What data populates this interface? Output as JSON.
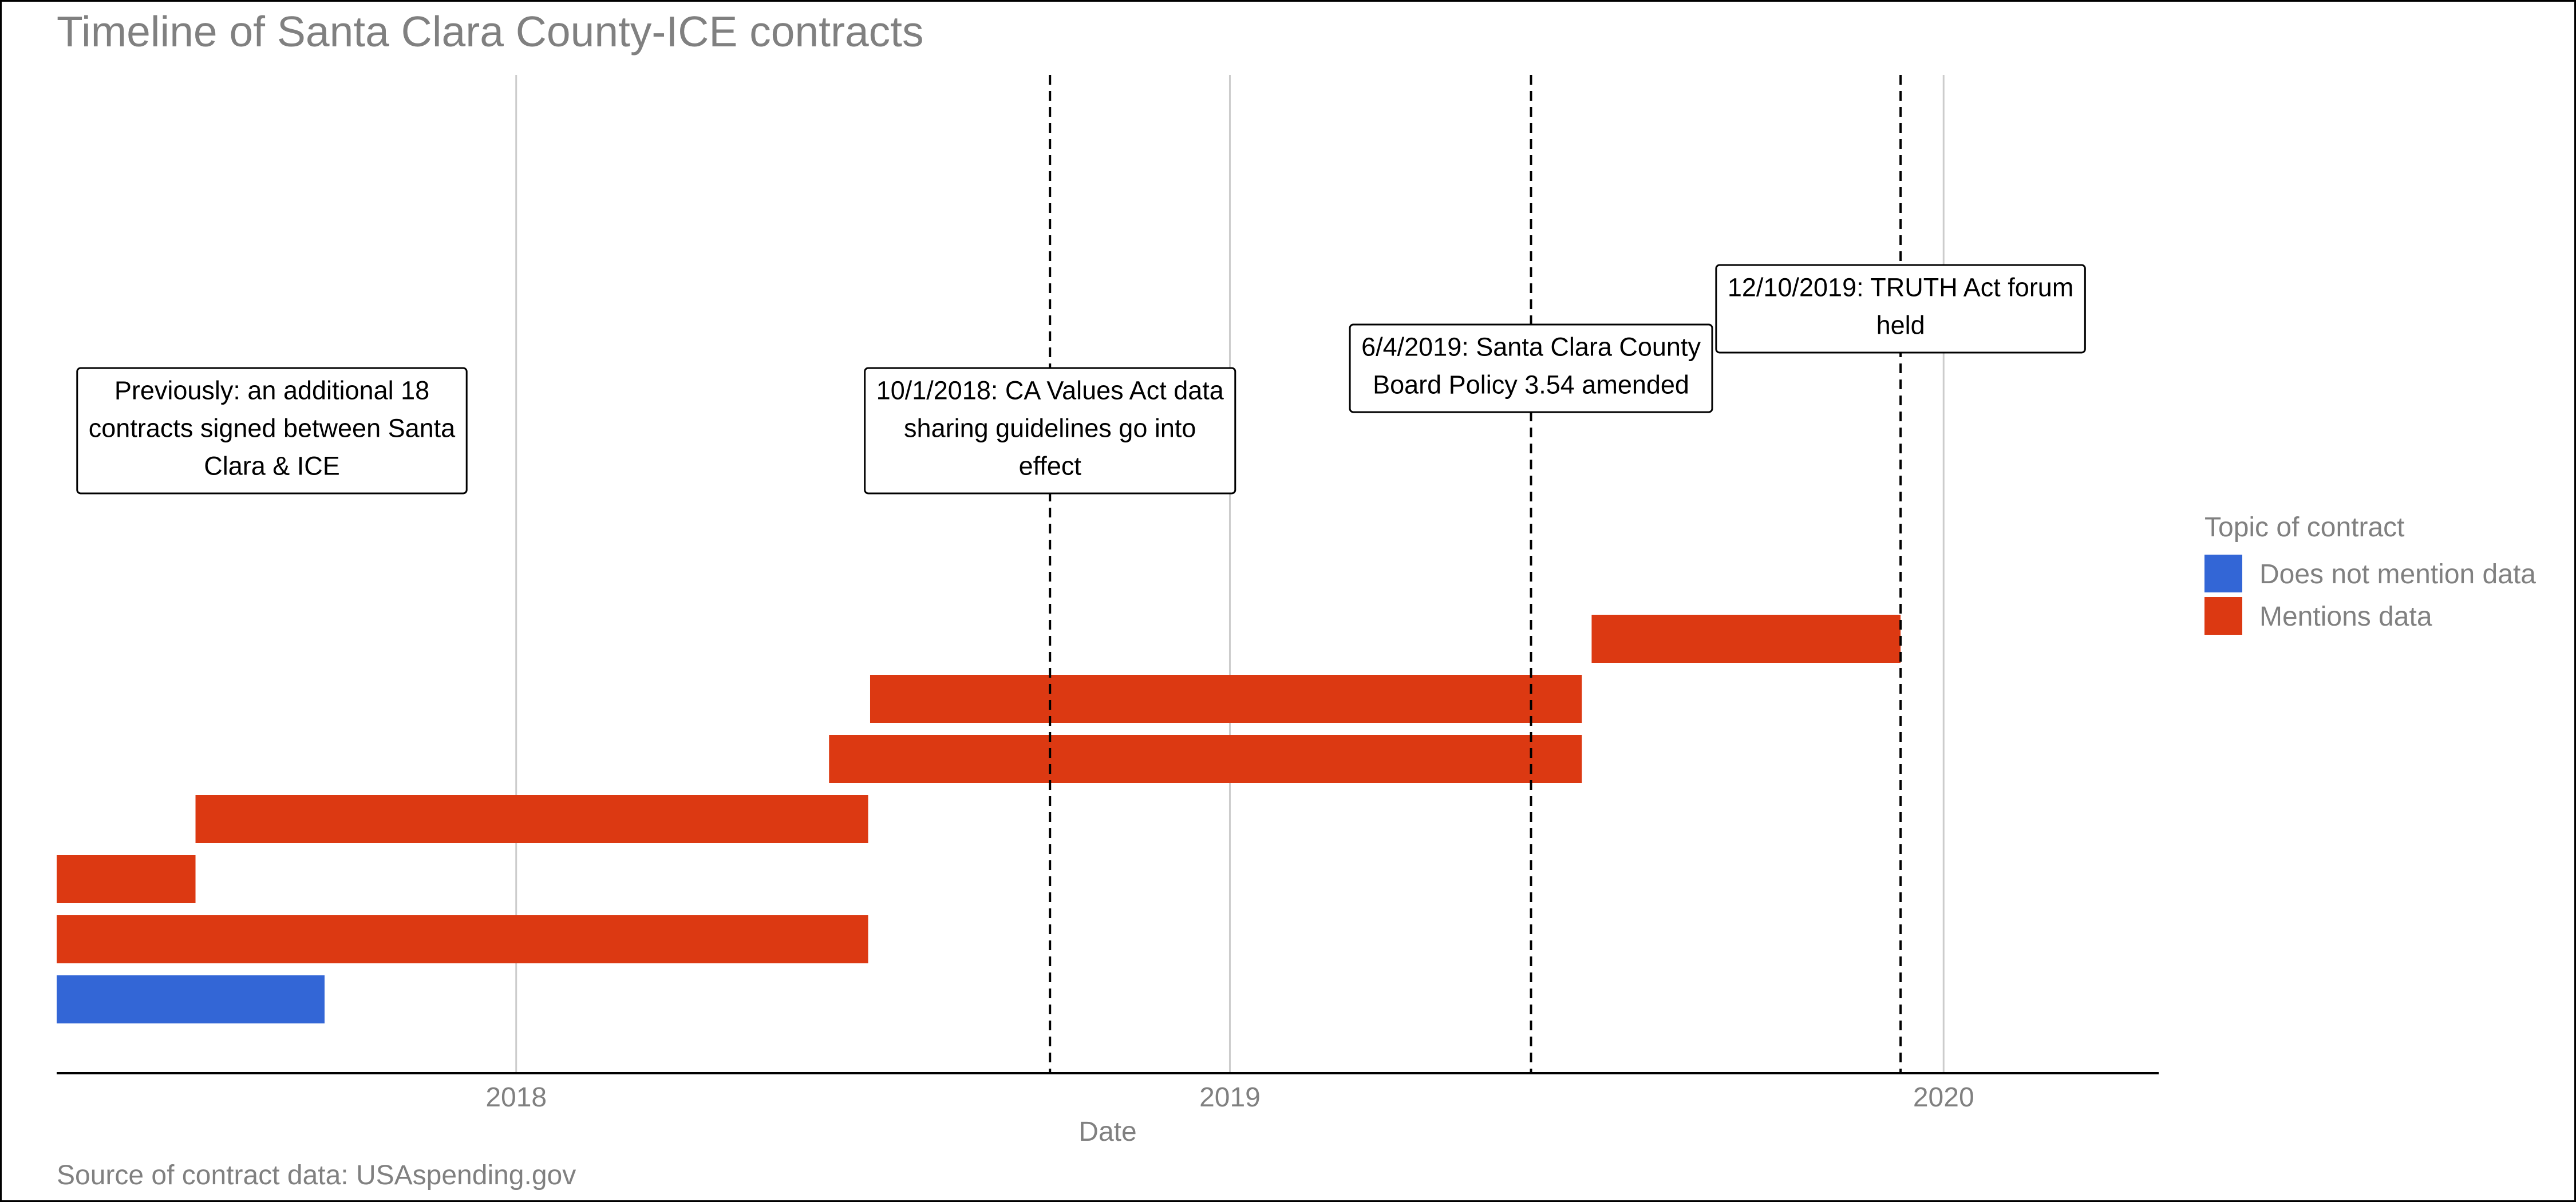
{
  "chart_data": {
    "type": "bar",
    "subtype": "timeline",
    "title": "Timeline of Santa Clara County-ICE contracts",
    "xlabel": "Date",
    "ylabel": "",
    "xlim": [
      "2017-05-11",
      "2020-04-20"
    ],
    "x_ticks": [
      {
        "date": "2018-01-01",
        "label": "2018"
      },
      {
        "date": "2019-01-01",
        "label": "2019"
      },
      {
        "date": "2020-01-01",
        "label": "2020"
      }
    ],
    "grid": "vertical major",
    "legend": {
      "title": "Topic of contract",
      "position": "right",
      "entries": [
        {
          "label": "Does not mention data",
          "color": "#3366d6"
        },
        {
          "label": "Mentions data",
          "color": "#dc3912"
        }
      ]
    },
    "series": [
      {
        "row": 1,
        "start": "2017-05-11",
        "end": "2017-09-25",
        "category": "Does not mention data"
      },
      {
        "row": 2,
        "start": "2017-05-11",
        "end": "2018-06-30",
        "category": "Mentions data"
      },
      {
        "row": 3,
        "start": "2017-05-11",
        "end": "2017-07-21",
        "category": "Mentions data"
      },
      {
        "row": 4,
        "start": "2017-07-21",
        "end": "2018-06-30",
        "category": "Mentions data"
      },
      {
        "row": 5,
        "start": "2018-06-10",
        "end": "2019-06-30",
        "category": "Mentions data"
      },
      {
        "row": 6,
        "start": "2018-07-01",
        "end": "2019-06-30",
        "category": "Mentions data"
      },
      {
        "row": 7,
        "start": "2019-07-05",
        "end": "2019-12-10",
        "category": "Mentions data"
      }
    ],
    "events": [
      {
        "date": "2018-10-01",
        "label": "10/1/2018: CA Values Act data sharing guidelines go into effect",
        "lines": [
          "10/1/2018: CA Values Act data",
          "sharing guidelines go into",
          "effect"
        ]
      },
      {
        "date": "2019-06-04",
        "label": "6/4/2019: Santa Clara County Board Policy 3.54 amended",
        "lines": [
          "6/4/2019: Santa Clara County",
          "Board Policy 3.54 amended"
        ]
      },
      {
        "date": "2019-12-10",
        "label": "12/10/2019: TRUTH Act forum held",
        "lines": [
          "12/10/2019: TRUTH Act forum",
          "held"
        ]
      }
    ],
    "annotations": [
      {
        "label": "Previously: an additional 18 contracts signed between Santa Clara & ICE",
        "lines": [
          "Previously: an additional 18",
          "contracts signed between Santa",
          "Clara & ICE"
        ]
      }
    ],
    "caption": "Source of contract data: USAspending.gov"
  }
}
